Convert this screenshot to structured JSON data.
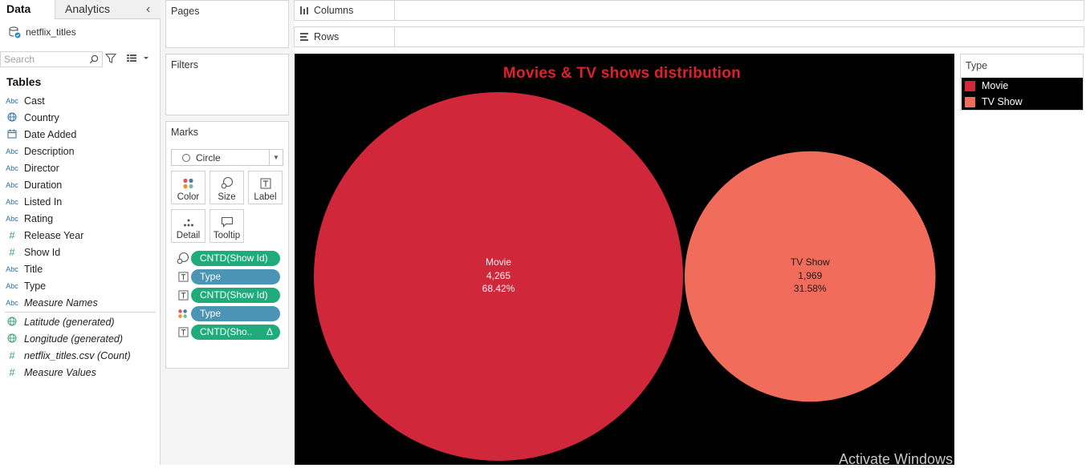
{
  "tabs": {
    "data": "Data",
    "analytics": "Analytics"
  },
  "datasource": {
    "name": "netflix_titles"
  },
  "search": {
    "placeholder": "Search"
  },
  "tables": {
    "header": "Tables",
    "fields": [
      {
        "label": "Cast",
        "type": "Abc"
      },
      {
        "label": "Country",
        "type": "globe"
      },
      {
        "label": "Date Added",
        "type": "calendar"
      },
      {
        "label": "Description",
        "type": "Abc"
      },
      {
        "label": "Director",
        "type": "Abc"
      },
      {
        "label": "Duration",
        "type": "Abc"
      },
      {
        "label": "Listed In",
        "type": "Abc"
      },
      {
        "label": "Rating",
        "type": "Abc"
      },
      {
        "label": "Release Year",
        "type": "#"
      },
      {
        "label": "Show Id",
        "type": "#"
      },
      {
        "label": "Title",
        "type": "Abc"
      },
      {
        "label": "Type",
        "type": "Abc"
      },
      {
        "label": "Measure Names",
        "type": "Abc"
      }
    ],
    "measures": [
      {
        "label": "Latitude (generated)",
        "type": "globe"
      },
      {
        "label": "Longitude (generated)",
        "type": "globe"
      },
      {
        "label": "netflix_titles.csv (Count)",
        "type": "#"
      },
      {
        "label": "Measure Values",
        "type": "#"
      }
    ]
  },
  "cards": {
    "pages": "Pages",
    "filters": "Filters",
    "marks": "Marks"
  },
  "marks": {
    "mark_type": "Circle",
    "buttons": {
      "color": "Color",
      "size": "Size",
      "label": "Label",
      "detail": "Detail",
      "tooltip": "Tooltip"
    },
    "pills": [
      {
        "label": "CNTD(Show Id)"
      },
      {
        "label": "Type"
      },
      {
        "label": "CNTD(Show Id)"
      },
      {
        "label": "Type"
      },
      {
        "label": "CNTD(Sho..",
        "delta": "Δ"
      }
    ]
  },
  "shelves": {
    "columns": "Columns",
    "rows": "Rows"
  },
  "legend": {
    "title": "Type",
    "items": [
      {
        "label": "Movie",
        "color": "#d1273b"
      },
      {
        "label": "TV Show",
        "color": "#f26c5b"
      }
    ]
  },
  "chart_data": {
    "type": "bubble",
    "title": "Movies & TV shows distribution",
    "series": [
      {
        "name": "Movie",
        "value": 4265,
        "value_label": "4,265",
        "percent_label": "68.42%",
        "color": "#d1273b"
      },
      {
        "name": "TV Show",
        "value": 1969,
        "value_label": "1,969",
        "percent_label": "31.58%",
        "color": "#f26c5b"
      }
    ],
    "background": "#000000",
    "title_color": "#e0202a"
  },
  "watermark": "Activate Windows"
}
